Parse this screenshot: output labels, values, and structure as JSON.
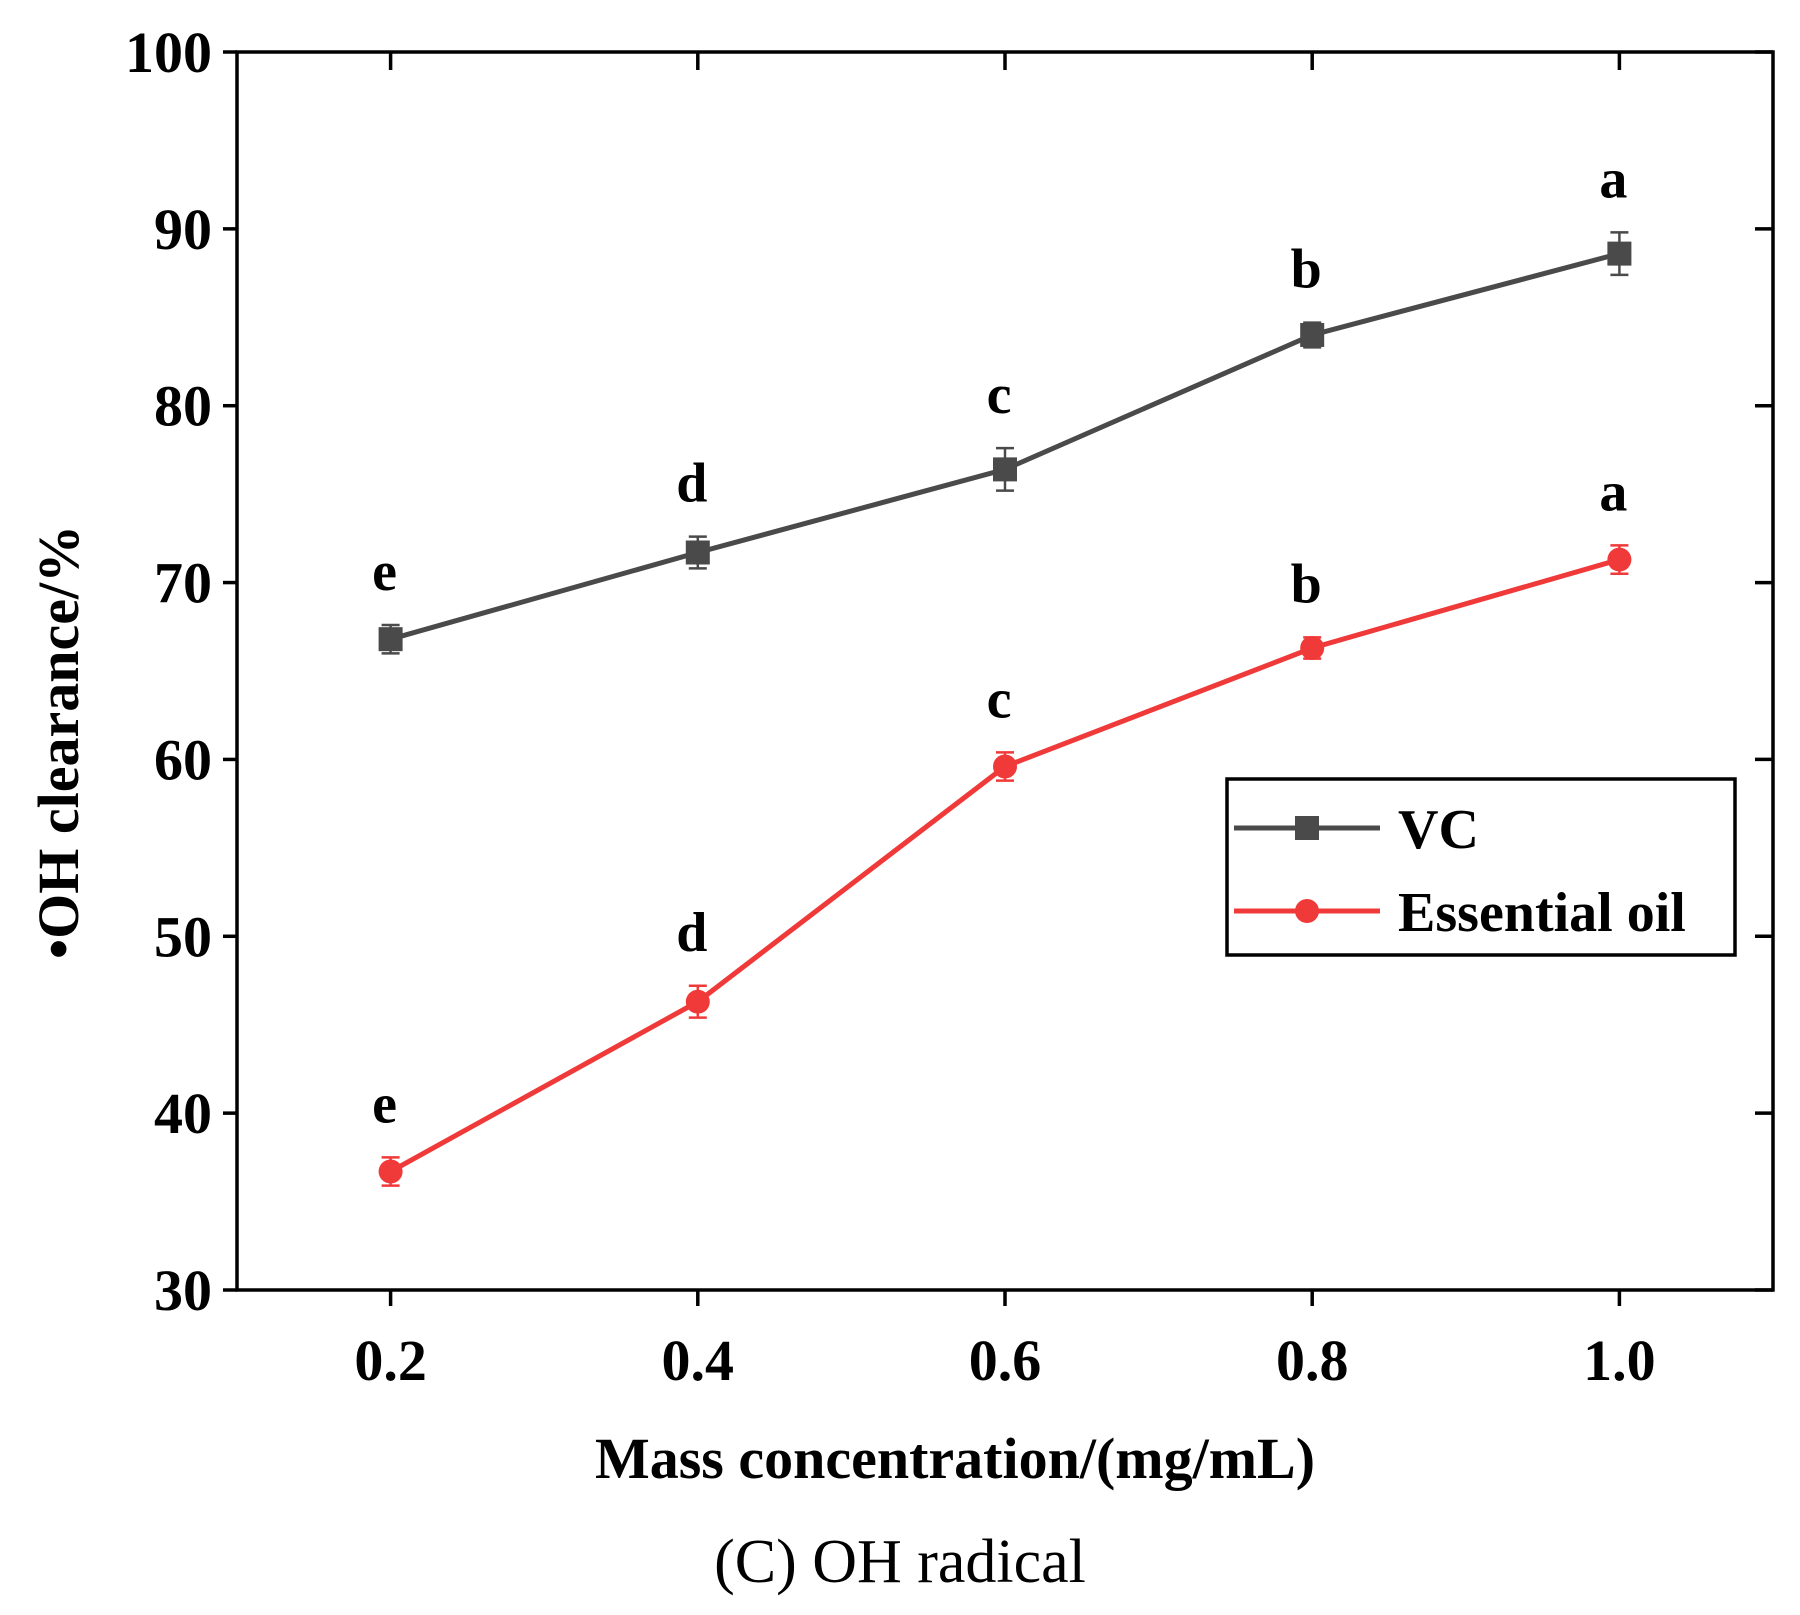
{
  "chart_data": {
    "type": "line",
    "title": "",
    "caption": "(C) OH radical",
    "xlabel": "Mass concentration/(mg/mL)",
    "ylabel": "•OH clearance/%",
    "x": [
      0.2,
      0.4,
      0.6,
      0.8,
      1.0
    ],
    "x_tick_labels": [
      "0.2",
      "0.4",
      "0.6",
      "0.8",
      "1.0"
    ],
    "xlim": [
      0.1,
      1.1
    ],
    "ylim": [
      30,
      100
    ],
    "y_ticks": [
      30,
      40,
      50,
      60,
      70,
      80,
      90,
      100
    ],
    "y_tick_labels": [
      "30",
      "40",
      "50",
      "60",
      "70",
      "80",
      "90",
      "100"
    ],
    "grid": false,
    "legend_position": "right-middle",
    "series": [
      {
        "name": "VC",
        "color": "#4a4a4a",
        "marker": "square",
        "values": [
          66.8,
          71.7,
          76.4,
          84.0,
          88.6
        ],
        "errors": [
          0.8,
          0.9,
          1.2,
          0.7,
          1.2
        ],
        "significance_labels": [
          "e",
          "d",
          "c",
          "b",
          "a"
        ]
      },
      {
        "name": "Essential oil",
        "color": "#f03a3a",
        "marker": "circle",
        "values": [
          36.7,
          46.3,
          59.6,
          66.3,
          71.3
        ],
        "errors": [
          0.8,
          0.9,
          0.8,
          0.6,
          0.8
        ],
        "significance_labels": [
          "e",
          "d",
          "c",
          "b",
          "a"
        ]
      }
    ]
  }
}
